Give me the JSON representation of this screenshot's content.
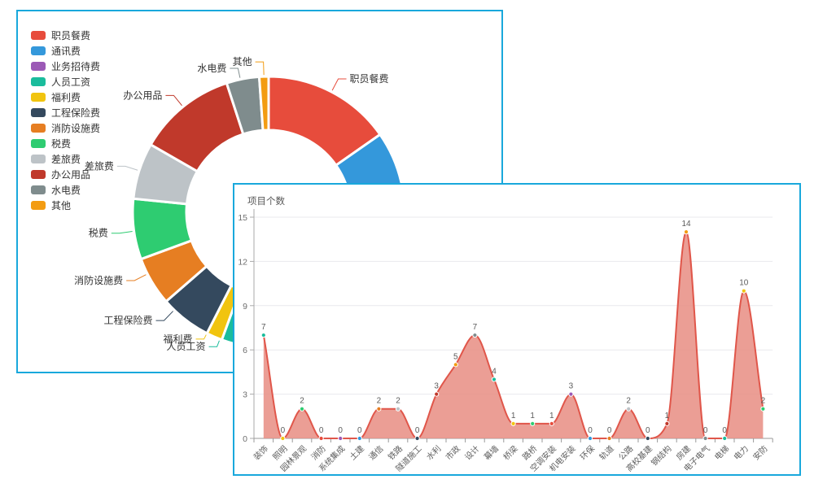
{
  "accent_border_color": "#19a8dc",
  "chart_data": [
    {
      "type": "pie",
      "subtype": "donut",
      "legend_position": "left",
      "slices": [
        {
          "name": "职员餐费",
          "percent": 15.3,
          "color": "#e74c3c"
        },
        {
          "name": "通讯费",
          "percent": 12.2,
          "color": "#3498db"
        },
        {
          "name": "业务招待费",
          "percent": 16.4,
          "color": "#9b59b6"
        },
        {
          "name": "人员工资",
          "percent": 11.7,
          "color": "#1abc9c"
        },
        {
          "name": "福利费",
          "percent": 1.9,
          "color": "#f1c40f"
        },
        {
          "name": "工程保险费",
          "percent": 6.1,
          "color": "#34495e"
        },
        {
          "name": "消防设施费",
          "percent": 5.8,
          "color": "#e67e22"
        },
        {
          "name": "税费",
          "percent": 7.2,
          "color": "#2ecc71"
        },
        {
          "name": "差旅费",
          "percent": 6.7,
          "color": "#bdc3c7"
        },
        {
          "name": "办公用品",
          "percent": 11.7,
          "color": "#c0392b"
        },
        {
          "name": "水电费",
          "percent": 3.9,
          "color": "#7f8c8d"
        },
        {
          "name": "其他",
          "percent": 1.1,
          "color": "#f39c12"
        }
      ]
    },
    {
      "type": "area",
      "title": "项目个数",
      "smooth": true,
      "categories": [
        "装饰",
        "照明",
        "园林景观",
        "消防",
        "系统集成",
        "土建",
        "通信",
        "铁路",
        "隧道施工",
        "水利",
        "市政",
        "设计",
        "幕墙",
        "桥梁",
        "路桥",
        "空调安装",
        "机电安装",
        "环保",
        "轨道",
        "公路",
        "高校基建",
        "钢结构",
        "房建",
        "电子电气",
        "电梯",
        "电力",
        "安防"
      ],
      "values": [
        7,
        0,
        2,
        0,
        0,
        0,
        2,
        2,
        0,
        3,
        5,
        7,
        4,
        1,
        1,
        1,
        3,
        0,
        0,
        2,
        0,
        1,
        14,
        0,
        0,
        10,
        2
      ],
      "ylim": [
        0,
        15
      ],
      "yticks": [
        0,
        3,
        6,
        9,
        12,
        15
      ],
      "line_color": "#e0564a",
      "fill_color": "#e88d82",
      "point_colors": [
        "#1abc9c",
        "#f1c40f",
        "#2ecc71",
        "#e74c3c",
        "#9b59b6",
        "#3498db",
        "#e67e22",
        "#bdc3c7",
        "#34495e",
        "#c0392b",
        "#f39c12",
        "#7f8c8d"
      ]
    }
  ]
}
